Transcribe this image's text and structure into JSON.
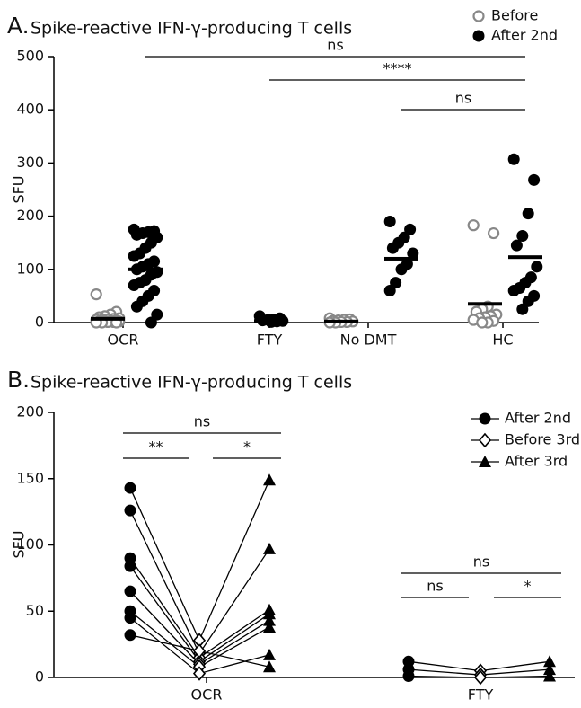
{
  "chart_data": [
    {
      "type": "scatter",
      "panel": "A.",
      "title": "Spike-reactive IFN-γ-producing T cells",
      "y_label": "SFU",
      "categories": [
        "OCR",
        "FTY",
        "No DMT",
        "HC"
      ],
      "ylim": [
        0,
        500
      ],
      "yticks": [
        0,
        100,
        200,
        300,
        400,
        500
      ],
      "series": [
        {
          "name": "Before",
          "color": "#888888",
          "marker": "open-circle",
          "values": [
            [
              53,
              20,
              15,
              12,
              10,
              8,
              7,
              6,
              5,
              5,
              4,
              3,
              3,
              2,
              2,
              1,
              1,
              0,
              0,
              0
            ],
            [],
            [
              8,
              6,
              5,
              4,
              3,
              2,
              1,
              1,
              0,
              0
            ],
            [
              183,
              168,
              30,
              25,
              20,
              15,
              12,
              10,
              8,
              5,
              3,
              0,
              0
            ]
          ],
          "means": [
            7,
            null,
            2,
            35
          ]
        },
        {
          "name": "After 2nd",
          "color": "#000000",
          "marker": "circle",
          "values": [
            [
              175,
              172,
              170,
              168,
              165,
              160,
              150,
              140,
              130,
              125,
              115,
              110,
              105,
              100,
              95,
              90,
              80,
              75,
              70,
              60,
              50,
              40,
              30,
              15,
              0
            ],
            [
              12,
              8,
              6,
              5,
              4,
              3,
              2,
              1
            ],
            [
              190,
              175,
              160,
              150,
              140,
              130,
              110,
              100,
              75,
              60
            ],
            [
              307,
              268,
              205,
              163,
              145,
              105,
              85,
              75,
              65,
              60,
              50,
              40,
              25
            ]
          ],
          "means": [
            100,
            3,
            120,
            123
          ]
        }
      ],
      "annotations": [
        "ns",
        "****",
        "ns"
      ]
    },
    {
      "type": "line",
      "panel": "B.",
      "title": "Spike-reactive IFN-γ-producing T cells",
      "y_label": "SFU",
      "categories": [
        "OCR",
        "FTY"
      ],
      "ylim": [
        0,
        200
      ],
      "yticks": [
        0,
        50,
        100,
        150,
        200
      ],
      "series": [
        {
          "name": "After 2nd",
          "color": "#000000",
          "marker": "circle",
          "values": [
            [
              143,
              126,
              90,
              84,
              65,
              50,
              45,
              32
            ],
            [
              12,
              6,
              1
            ]
          ]
        },
        {
          "name": "Before 3rd",
          "color": "#000000",
          "marker": "open-diamond",
          "values": [
            [
              28,
              18,
              15,
              12,
              10,
              8,
              3,
              20
            ],
            [
              5,
              2,
              0
            ]
          ]
        },
        {
          "name": "After 3rd",
          "color": "#000000",
          "marker": "triangle",
          "values": [
            [
              149,
              97,
              51,
              48,
              43,
              38,
              17,
              8
            ],
            [
              12,
              6,
              1
            ]
          ]
        }
      ],
      "annotations": [
        "ns",
        "**",
        "*",
        "ns",
        "ns",
        "*"
      ]
    }
  ]
}
